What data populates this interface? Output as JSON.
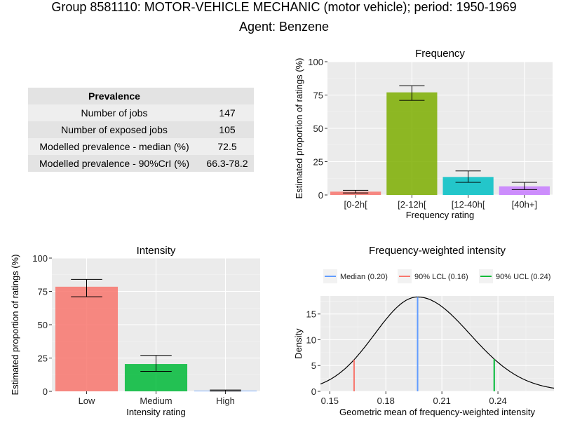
{
  "page": {
    "title": "Group 8581110: MOTOR-VEHICLE MECHANIC (motor vehicle); period: 1950-1969",
    "subtitle": "Agent: Benzene"
  },
  "prevalence_table": {
    "header": "Prevalence",
    "rows": [
      {
        "label": "Number of jobs",
        "value": "147"
      },
      {
        "label": "Number of exposed jobs",
        "value": "105"
      },
      {
        "label": "Modelled prevalence - median (%)",
        "value": "72.5"
      },
      {
        "label": "Modelled prevalence - 90%CrI (%)",
        "value": "66.3-78.2"
      }
    ]
  },
  "chart_data": [
    {
      "id": "frequency",
      "type": "bar",
      "title": "Frequency",
      "xlabel": "Frequency rating",
      "ylabel": "Estimated proportion of ratings (%)",
      "categories": [
        "[0-2h[",
        "[2-12h[",
        "[12-40h[",
        "[40h+]"
      ],
      "values": [
        2.5,
        77,
        13.5,
        6.5
      ],
      "error_low": [
        1.5,
        71,
        9.5,
        4
      ],
      "error_high": [
        3.5,
        82,
        18,
        9.5
      ],
      "colors": [
        "#f8766d",
        "#7cae00",
        "#00bfc4",
        "#c77cff"
      ],
      "ylim": [
        0,
        100
      ],
      "yticks": [
        0,
        25,
        50,
        75,
        100
      ],
      "grid": true
    },
    {
      "id": "intensity",
      "type": "bar",
      "title": "Intensity",
      "xlabel": "Intensity rating",
      "ylabel": "Estimated proportion of ratings (%)",
      "categories": [
        "Low",
        "Medium",
        "High"
      ],
      "values": [
        78.5,
        20.5,
        0.5
      ],
      "error_low": [
        71,
        15,
        0.2
      ],
      "error_high": [
        84,
        27,
        1
      ],
      "colors": [
        "#f8766d",
        "#00ba38",
        "#619cff"
      ],
      "ylim": [
        0,
        100
      ],
      "yticks": [
        0,
        25,
        50,
        75,
        100
      ],
      "grid": true
    },
    {
      "id": "fwi",
      "type": "line",
      "title": "Frequency-weighted intensity",
      "xlabel": "Geometric mean of frequency-weighted intensity",
      "ylabel": "Density",
      "xlim": [
        0.145,
        0.27
      ],
      "ylim": [
        0,
        18.5
      ],
      "xticks": [
        0.15,
        0.18,
        0.21,
        0.24
      ],
      "yticks": [
        0,
        5,
        10,
        15
      ],
      "density": {
        "mode": 0.197,
        "peak": 18.3,
        "sd_left": 0.023,
        "sd_right": 0.028
      },
      "vlines": [
        {
          "name": "Median (0.20)",
          "x": 0.197,
          "color": "#619cff"
        },
        {
          "name": "90% LCL (0.16)",
          "x": 0.163,
          "color": "#f8766d"
        },
        {
          "name": "90% UCL (0.24)",
          "x": 0.238,
          "color": "#00ba38"
        }
      ],
      "legend_position": "top",
      "grid": true
    }
  ]
}
